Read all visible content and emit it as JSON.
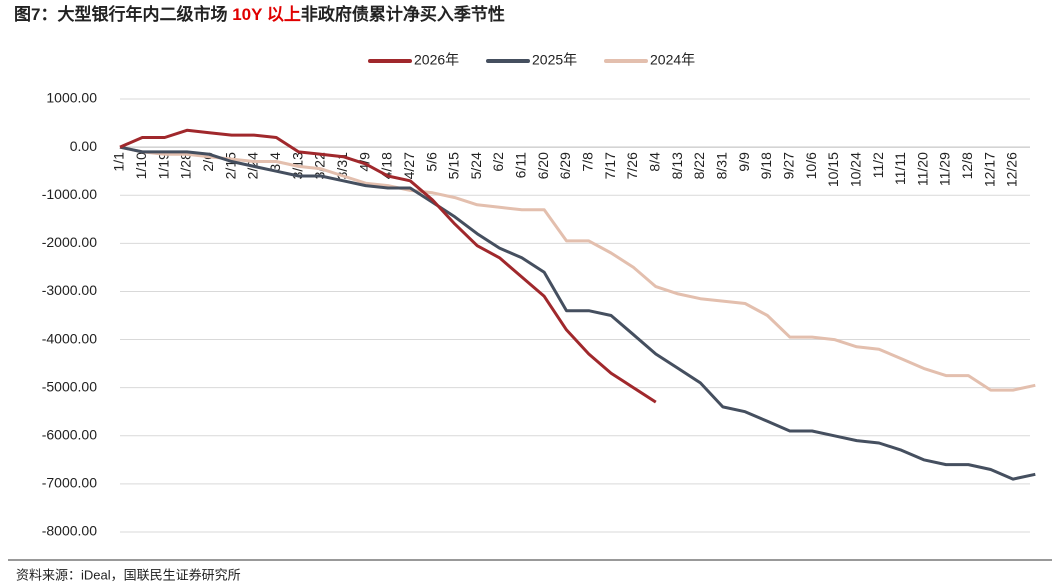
{
  "chart_data": {
    "type": "line",
    "title_prefix": "图7：大型银行年内二级市场 ",
    "title_highlight": "10Y 以上",
    "title_suffix": "非政府债累计净买入季节性",
    "source": "资料来源：iDeal，国联民生证券研究所",
    "categories": [
      "1/1",
      "1/10",
      "1/19",
      "1/28",
      "2/6",
      "2/15",
      "2/24",
      "3/4",
      "3/13",
      "3/22",
      "3/31",
      "4/9",
      "4/18",
      "4/27",
      "5/6",
      "5/15",
      "5/24",
      "6/2",
      "6/11",
      "6/20",
      "6/29",
      "7/8",
      "7/17",
      "7/26",
      "8/4",
      "8/13",
      "8/22",
      "8/31",
      "9/9",
      "9/18",
      "9/27",
      "10/6",
      "10/15",
      "10/24",
      "11/2",
      "11/11",
      "11/20",
      "11/29",
      "12/8",
      "12/17",
      "12/26",
      null
    ],
    "series": [
      {
        "name": "2026年",
        "color": "#a0282c",
        "values": [
          0,
          200,
          200,
          350,
          300,
          250,
          250,
          200,
          -100,
          -150,
          -200,
          -350,
          -600,
          -700,
          -1100,
          -1600,
          -2050,
          -2300,
          -2700,
          -3100,
          -3800,
          -4300,
          -4700,
          -5000,
          -5300,
          null,
          null,
          null,
          null,
          null,
          null,
          null,
          null,
          null,
          null,
          null,
          null,
          null,
          null,
          null,
          null,
          null
        ]
      },
      {
        "name": "2025年",
        "color": "#454f5f",
        "values": [
          0,
          -100,
          -100,
          -100,
          -150,
          -300,
          -400,
          -500,
          -600,
          -600,
          -700,
          -800,
          -850,
          -850,
          -1150,
          -1450,
          -1800,
          -2100,
          -2300,
          -2600,
          -3400,
          -3400,
          -3500,
          -3900,
          -4300,
          -4600,
          -4900,
          -5400,
          -5500,
          -5700,
          -5900,
          -5900,
          -6000,
          -6100,
          -6150,
          -6300,
          -6500,
          -6600,
          -6600,
          -6700,
          -6900,
          -6800
        ]
      },
      {
        "name": "2024年",
        "color": "#e3bfae",
        "values": [
          0,
          -100,
          -150,
          -150,
          -200,
          -250,
          -300,
          -300,
          -400,
          -450,
          -600,
          -750,
          -800,
          -900,
          -950,
          -1050,
          -1200,
          -1250,
          -1300,
          -1300,
          -1950,
          -1950,
          -2200,
          -2500,
          -2900,
          -3050,
          -3150,
          -3200,
          -3250,
          -3500,
          -3950,
          -3950,
          -4000,
          -4150,
          -4200,
          -4400,
          -4600,
          -4750,
          -4750,
          -5050,
          -5050,
          -4950
        ]
      }
    ],
    "ylim": [
      -8000,
      1000
    ],
    "yticks": [
      {
        "value": 1000,
        "label": "1000.00"
      },
      {
        "value": 0,
        "label": "0.00"
      },
      {
        "value": -1000,
        "label": "-1000.00"
      },
      {
        "value": -2000,
        "label": "-2000.00"
      },
      {
        "value": -3000,
        "label": "-3000.00"
      },
      {
        "value": -4000,
        "label": "-4000.00"
      },
      {
        "value": -5000,
        "label": "-5000.00"
      },
      {
        "value": -6000,
        "label": "-6000.00"
      },
      {
        "value": -7000,
        "label": "-7000.00"
      },
      {
        "value": -8000,
        "label": "-8000.00"
      }
    ],
    "grid": true
  }
}
